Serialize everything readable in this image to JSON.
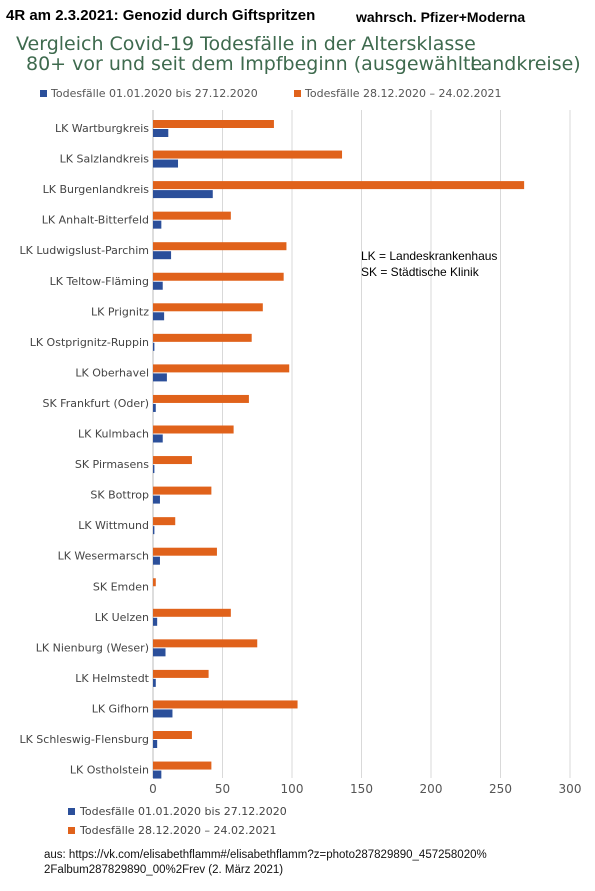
{
  "header": {
    "left": "4R am 2.3.2021: Genozid durch Giftspritzen",
    "right": "wahrsch. Pfizer+Moderna"
  },
  "annotation": {
    "line1": "LK = Landeskrankenhaus",
    "line2": "SK = Städtische Klinik"
  },
  "source": {
    "line1": "aus: https://vk.com/elisabethflamm#/elisabethflamm?z=photo287829890_457258020%",
    "line2": "2Falbum287829890_00%2Frev (2. März 2021)"
  },
  "chart_data": {
    "type": "bar",
    "orientation": "horizontal",
    "title_line1": "Vergleich Covid-19 Todesfälle in der Altersklasse",
    "title_line2": "80+ vor und seit dem Impfbeginn (ausgewählte",
    "title_line3": "Landkreise)",
    "categories": [
      "LK Wartburgkreis",
      "LK Salzlandkreis",
      "LK Burgenlandkreis",
      "LK Anhalt-Bitterfeld",
      "LK Ludwigslust-Parchim",
      "LK Teltow-Fläming",
      "LK Prignitz",
      "LK Ostprignitz-Ruppin",
      "LK Oberhavel",
      "SK Frankfurt (Oder)",
      "LK Kulmbach",
      "SK Pirmasens",
      "SK Bottrop",
      "LK Wittmund",
      "LK Wesermarsch",
      "SK Emden",
      "LK Uelzen",
      "LK Nienburg (Weser)",
      "LK Helmstedt",
      "LK Gifhorn",
      "LK Schleswig-Flensburg",
      "LK Ostholstein"
    ],
    "series": [
      {
        "name": "Todesfälle 01.01.2020  bis 27.12.2020",
        "color": "#2b4f9a",
        "values": [
          11,
          18,
          43,
          6,
          13,
          7,
          8,
          1,
          10,
          2,
          7,
          1,
          5,
          1,
          5,
          0,
          3,
          9,
          2,
          14,
          3,
          6
        ]
      },
      {
        "name": "Todesfälle 28.12.2020 – 24.02.2021",
        "color": "#e0621b",
        "values": [
          87,
          136,
          267,
          56,
          96,
          94,
          79,
          71,
          98,
          69,
          58,
          28,
          42,
          16,
          46,
          2,
          56,
          75,
          40,
          104,
          28,
          42
        ]
      }
    ],
    "xlim": [
      0,
      300
    ],
    "xticks": [
      "0",
      "50",
      "100",
      "150",
      "200",
      "250",
      "300"
    ],
    "grid": true,
    "legend_position": "top and bottom"
  }
}
